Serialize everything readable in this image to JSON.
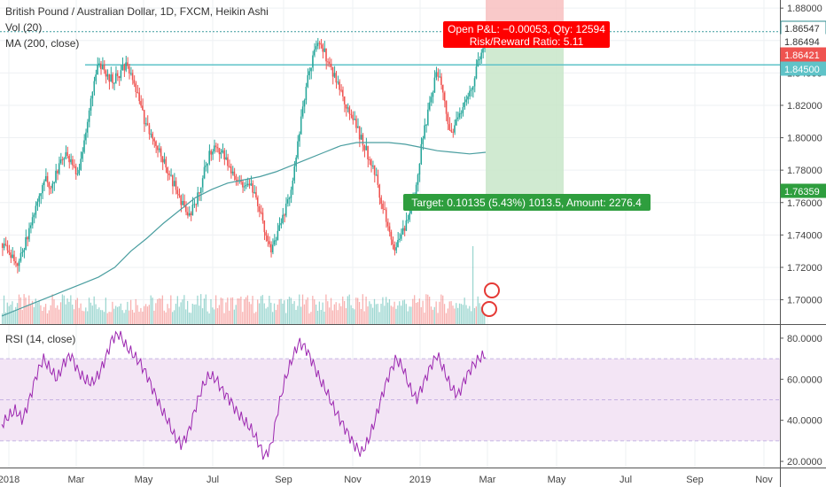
{
  "main_pane": {
    "title": "British Pound / Australian Dollar, 1D, FXCM, Heikin Ashi",
    "vol_label": "Vol (20)",
    "ma_label": "MA (200, close)"
  },
  "rsi_pane": {
    "label": "RSI (14, close)"
  },
  "position_tool": {
    "pnl_text": "Open P&L: −0.00053, Qty: 12594",
    "rr_text": "Risk/Reward Ratio: 5.11",
    "target_text": "Target: 0.10135 (5.43%) 1013.5, Amount: 2276.4"
  },
  "colors": {
    "bull": "#26a69a",
    "bear": "#ef5350",
    "ma": "#4a9ea0",
    "rsi": "#9c27b0",
    "rsi_band": "#f3e5f5",
    "hline": "#5fc3c8",
    "stop_zone": "#f8bcbc",
    "profit_zone": "#c8e6c9",
    "target_badge": "#2e9e3e",
    "pnl_badge": "#ff0000"
  },
  "chart_data": [
    {
      "type": "candlestick",
      "chart_style": "Heikin Ashi",
      "symbol": "British Pound / Australian Dollar",
      "timeframe": "1D",
      "source": "FXCM",
      "ylim": [
        1.685,
        1.885
      ],
      "y_ticks": [
        "1.88000",
        "1.86000",
        "1.84000",
        "1.82000",
        "1.80000",
        "1.78000",
        "1.76000",
        "1.74000",
        "1.72000",
        "1.70000"
      ],
      "x_ticks": [
        "2018",
        "Mar",
        "May",
        "Jul",
        "Sep",
        "Nov",
        "2019",
        "Mar",
        "May",
        "Jul",
        "Sep",
        "Nov"
      ],
      "price_labels": [
        {
          "value": "1.86547",
          "style": "outline"
        },
        {
          "value": "1.86494",
          "style": "dark"
        },
        {
          "value": "1.86421",
          "style": "red"
        },
        {
          "value": "1.84500",
          "style": "teal"
        },
        {
          "value": "1.76359",
          "style": "green"
        }
      ],
      "horizontal_line": 1.845,
      "dotted_line": 1.86547,
      "position": {
        "entry": 1.8642,
        "target": 1.7636,
        "stop": 1.885
      },
      "close_series": [
        1.735,
        1.728,
        1.722,
        1.73,
        1.745,
        1.76,
        1.775,
        1.77,
        1.78,
        1.79,
        1.785,
        1.775,
        1.8,
        1.83,
        1.845,
        1.84,
        1.835,
        1.84,
        1.845,
        1.835,
        1.82,
        1.805,
        1.8,
        1.79,
        1.78,
        1.77,
        1.76,
        1.75,
        1.76,
        1.775,
        1.79,
        1.795,
        1.79,
        1.78,
        1.775,
        1.77,
        1.77,
        1.76,
        1.745,
        1.73,
        1.74,
        1.755,
        1.77,
        1.8,
        1.83,
        1.85,
        1.86,
        1.85,
        1.84,
        1.83,
        1.82,
        1.81,
        1.8,
        1.79,
        1.78,
        1.76,
        1.745,
        1.73,
        1.74,
        1.75,
        1.77,
        1.8,
        1.82,
        1.84,
        1.83,
        1.8,
        1.81,
        1.82,
        1.83,
        1.845,
        1.86
      ],
      "ma_series": [
        1.69,
        1.694,
        1.698,
        1.702,
        1.706,
        1.71,
        1.714,
        1.72,
        1.73,
        1.738,
        1.747,
        1.755,
        1.763,
        1.768,
        1.772,
        1.774,
        1.776,
        1.779,
        1.783,
        1.787,
        1.791,
        1.795,
        1.797,
        1.797,
        1.797,
        1.796,
        1.794,
        1.792,
        1.791,
        1.79,
        1.791
      ]
    },
    {
      "type": "line",
      "name": "RSI (14, close)",
      "ylim": [
        17,
        86
      ],
      "y_ticks": [
        "80.0000",
        "60.0000",
        "40.0000",
        "20.0000"
      ],
      "bands": [
        30,
        70
      ],
      "values": [
        38,
        42,
        45,
        40,
        50,
        62,
        70,
        65,
        60,
        68,
        72,
        64,
        60,
        58,
        62,
        70,
        80,
        82,
        76,
        72,
        68,
        62,
        54,
        46,
        40,
        32,
        28,
        34,
        46,
        56,
        62,
        60,
        54,
        50,
        44,
        40,
        36,
        30,
        22,
        28,
        46,
        60,
        70,
        78,
        75,
        68,
        60,
        54,
        46,
        40,
        34,
        28,
        24,
        30,
        40,
        52,
        62,
        70,
        66,
        56,
        50,
        58,
        66,
        72,
        64,
        56,
        52,
        60,
        66,
        70,
        72
      ]
    }
  ]
}
